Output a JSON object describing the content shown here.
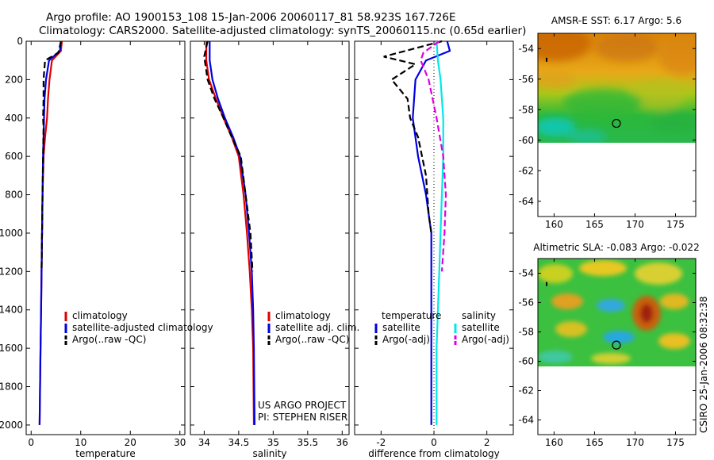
{
  "header": {
    "line1": "Argo profile: AO 1900153_108 15-Jan-2006 20060117_81 58.923S 167.726E",
    "line2": "Climatology: CARS2000. Satellite-adjusted climatology: synTS_20060115.nc (0.65d earlier)"
  },
  "credit": {
    "project": "US ARGO PROJECT",
    "pi": "PI: STEPHEN RISER",
    "stamp": "CSIRO 25-Jan-2006 08:32:38"
  },
  "colors": {
    "climatology": "#e00000",
    "satellite": "#0000e0",
    "argo": "#000000",
    "salinity_satellite": "#00e8e8",
    "salinity_argo": "#e000e0"
  },
  "chart_data": [
    {
      "id": "temperature",
      "type": "line",
      "xlabel": "temperature",
      "ylabel": "",
      "xlim": [
        -1,
        31
      ],
      "ylim": [
        2050,
        0
      ],
      "y_reversed": true,
      "xticks": [
        0,
        10,
        20,
        30
      ],
      "yticks": [
        0,
        200,
        400,
        600,
        800,
        1000,
        1200,
        1400,
        1600,
        1800,
        2000
      ],
      "legend": [
        "climatology",
        "satellite-adjusted climatology",
        "Argo(..raw -QC)"
      ],
      "series": [
        {
          "name": "climatology",
          "color": "#e00000",
          "dash": "solid",
          "x": [
            6.2,
            6.0,
            4.2,
            3.7,
            3.4,
            3.2,
            2.8,
            2.5,
            2.3,
            2.2,
            2.1,
            2.0,
            1.9,
            1.8,
            1.7
          ],
          "y": [
            0,
            50,
            100,
            200,
            300,
            400,
            500,
            600,
            800,
            1000,
            1200,
            1400,
            1600,
            1800,
            2000
          ]
        },
        {
          "name": "satellite-adjusted climatology",
          "color": "#0000e0",
          "dash": "solid",
          "x": [
            6.0,
            5.8,
            3.6,
            3.0,
            2.7,
            2.6,
            2.5,
            2.4,
            2.3,
            2.2,
            2.1,
            2.0,
            1.9,
            1.8,
            1.7
          ],
          "y": [
            0,
            50,
            100,
            200,
            300,
            400,
            500,
            600,
            800,
            1000,
            1200,
            1400,
            1600,
            1800,
            2000
          ]
        },
        {
          "name": "Argo(..raw -QC)",
          "color": "#000000",
          "dash": "dashed",
          "x": [
            6.0,
            5.5,
            2.8,
            2.5,
            2.5,
            2.4,
            2.5,
            2.4,
            2.3,
            2.2,
            2.1
          ],
          "y": [
            0,
            60,
            100,
            200,
            300,
            400,
            450,
            600,
            800,
            1000,
            1200
          ]
        }
      ]
    },
    {
      "id": "salinity",
      "type": "line",
      "xlabel": "salinity",
      "ylabel": "",
      "xlim": [
        33.8,
        36.1
      ],
      "ylim": [
        2050,
        0
      ],
      "y_reversed": true,
      "xticks": [
        34,
        34.5,
        35,
        35.5,
        36
      ],
      "legend": [
        "climatology",
        "satellite adj. clim.",
        "Argo(..raw -QC)"
      ],
      "series": [
        {
          "name": "climatology",
          "color": "#e00000",
          "dash": "solid",
          "x": [
            34.03,
            34.03,
            34.07,
            34.17,
            34.28,
            34.4,
            34.5,
            34.57,
            34.62,
            34.66,
            34.69,
            34.71,
            34.72
          ],
          "y": [
            0,
            100,
            200,
            300,
            400,
            500,
            600,
            800,
            1000,
            1200,
            1400,
            1600,
            2000
          ]
        },
        {
          "name": "satellite adj. clim.",
          "color": "#0000e0",
          "dash": "solid",
          "x": [
            34.08,
            34.08,
            34.12,
            34.2,
            34.3,
            34.42,
            34.52,
            34.6,
            34.65,
            34.69,
            34.71,
            34.72,
            34.73
          ],
          "y": [
            0,
            100,
            200,
            300,
            400,
            500,
            600,
            800,
            1000,
            1200,
            1400,
            1600,
            2000
          ]
        },
        {
          "name": "Argo(..raw -QC)",
          "color": "#000000",
          "dash": "dashed",
          "x": [
            34.05,
            34.0,
            34.05,
            34.15,
            34.28,
            34.4,
            34.53,
            34.6,
            34.67,
            34.7
          ],
          "y": [
            0,
            80,
            200,
            300,
            400,
            500,
            600,
            800,
            1000,
            1200
          ]
        }
      ],
      "credit": [
        "US ARGO PROJECT",
        "PI: STEPHEN RISER"
      ]
    },
    {
      "id": "difference",
      "type": "line",
      "xlabel": "difference from climatology",
      "ylabel": "",
      "xlim": [
        -3,
        3
      ],
      "ylim": [
        2050,
        0
      ],
      "y_reversed": true,
      "xticks": [
        -2,
        0,
        2
      ],
      "legend_groups": [
        {
          "title": "temperature",
          "items": [
            "satellite",
            "Argo(-adj)"
          ]
        },
        {
          "title": "salinity",
          "items": [
            "satellite",
            "Argo(-adj)"
          ]
        }
      ],
      "series": [
        {
          "name": "temperature satellite",
          "color": "#0000e0",
          "dash": "solid",
          "x": [
            0.5,
            0.6,
            -0.3,
            -0.7,
            -0.8,
            -0.6,
            -0.3,
            -0.2,
            -0.1,
            -0.1,
            -0.1,
            -0.1,
            -0.1
          ],
          "y": [
            0,
            50,
            100,
            200,
            400,
            600,
            800,
            900,
            1000,
            1200,
            1400,
            1600,
            2000
          ]
        },
        {
          "name": "temperature Argo(-adj)",
          "color": "#000000",
          "dash": "dashed",
          "x": [
            0.3,
            -1.9,
            -0.7,
            -1.6,
            -1.0,
            -0.9,
            -0.6,
            -0.3,
            -0.2,
            -0.1
          ],
          "y": [
            0,
            80,
            120,
            200,
            300,
            400,
            500,
            700,
            900,
            1000
          ]
        },
        {
          "name": "salinity satellite",
          "color": "#00e8e8",
          "dash": "solid",
          "x": [
            0.1,
            0.15,
            0.25,
            0.35,
            0.35,
            0.3,
            0.25,
            0.2,
            0.15,
            0.1,
            0.1,
            0.1
          ],
          "y": [
            0,
            100,
            200,
            400,
            600,
            800,
            1000,
            1200,
            1400,
            1600,
            1800,
            2000
          ]
        },
        {
          "name": "salinity Argo(-adj)",
          "color": "#e000e0",
          "dash": "dashed",
          "x": [
            0.2,
            -0.4,
            -0.5,
            -0.2,
            0.1,
            0.35,
            0.45,
            0.4,
            0.3
          ],
          "y": [
            0,
            60,
            100,
            200,
            400,
            600,
            800,
            1000,
            1200
          ]
        }
      ]
    },
    {
      "id": "sst_map",
      "type": "heatmap",
      "title": "AMSR-E SST: 6.17 Argo: 5.6",
      "xlim": [
        158,
        177.5
      ],
      "ylim": [
        -65,
        -53
      ],
      "xticks": [
        160,
        165,
        170,
        175
      ],
      "yticks": [
        -54,
        -56,
        -58,
        -60,
        -62,
        -64
      ],
      "data_extent_lat": [
        -60.1,
        -53
      ],
      "argo_position": {
        "lon": 167.7,
        "lat": -58.9
      }
    },
    {
      "id": "sla_map",
      "type": "heatmap",
      "title": "Altimetric SLA: -0.083 Argo: -0.022",
      "xlim": [
        158,
        177.5
      ],
      "ylim": [
        -65,
        -53
      ],
      "xticks": [
        160,
        165,
        170,
        175
      ],
      "yticks": [
        -54,
        -56,
        -58,
        -60,
        -62,
        -64
      ],
      "data_extent_lat": [
        -60.1,
        -53
      ],
      "argo_position": {
        "lon": 167.7,
        "lat": -58.9
      }
    }
  ]
}
